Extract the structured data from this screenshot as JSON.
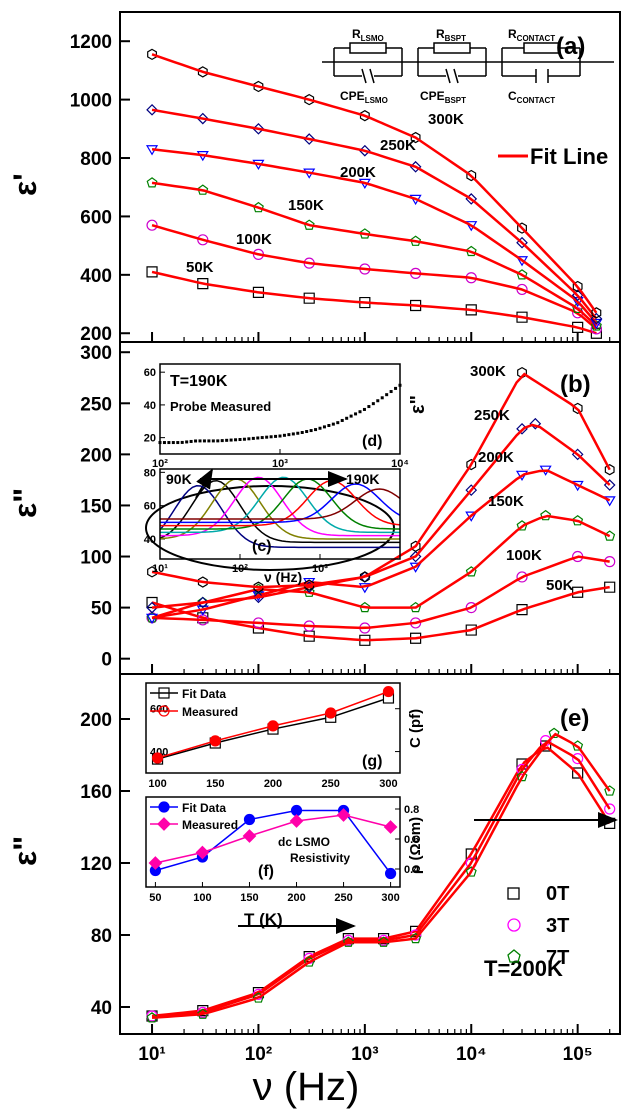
{
  "chart_data": [
    {
      "panel": "a",
      "type": "scatter",
      "title": "",
      "xlabel": "ν (Hz)",
      "ylabel": "ε'",
      "xscale": "log",
      "xlim": [
        5,
        250000
      ],
      "ylim": [
        170,
        1300
      ],
      "yticks": [
        200,
        400,
        600,
        800,
        1000,
        1200
      ],
      "panel_label": "(a)",
      "fit_legend": "Fit Line",
      "circuit": {
        "r1": "R",
        "r1_sub": "LSMO",
        "r2": "R",
        "r2_sub": "BSPT",
        "r3": "R",
        "r3_sub": "CONTACT",
        "c1": "CPE",
        "c1_sub": "LSMO",
        "c2": "CPE",
        "c2_sub": "BSPT",
        "c3": "C",
        "c3_sub": "CONTACT"
      },
      "series": [
        {
          "name": "50K",
          "marker": "square",
          "color": "#000000",
          "x": [
            10,
            30,
            100,
            300,
            1000,
            3000,
            10000,
            30000,
            100000,
            150000
          ],
          "y": [
            410,
            370,
            340,
            320,
            305,
            295,
            280,
            255,
            220,
            200
          ]
        },
        {
          "name": "100K",
          "marker": "circle",
          "color": "#cc00cc",
          "x": [
            10,
            30,
            100,
            300,
            1000,
            3000,
            10000,
            30000,
            100000,
            150000
          ],
          "y": [
            570,
            520,
            470,
            440,
            420,
            405,
            390,
            350,
            270,
            215
          ]
        },
        {
          "name": "150K",
          "marker": "pentagon",
          "color": "#008000",
          "x": [
            10,
            30,
            100,
            300,
            1000,
            3000,
            10000,
            30000,
            100000,
            150000
          ],
          "y": [
            715,
            690,
            630,
            570,
            540,
            515,
            480,
            400,
            285,
            225
          ]
        },
        {
          "name": "200K",
          "marker": "triangle-down",
          "color": "#0000ff",
          "x": [
            10,
            30,
            100,
            300,
            1000,
            3000,
            10000,
            30000,
            100000,
            150000
          ],
          "y": [
            830,
            810,
            780,
            750,
            715,
            660,
            570,
            450,
            310,
            235
          ]
        },
        {
          "name": "250K",
          "marker": "diamond",
          "color": "#000080",
          "x": [
            10,
            30,
            100,
            300,
            1000,
            3000,
            10000,
            30000,
            100000,
            150000
          ],
          "y": [
            965,
            935,
            900,
            865,
            825,
            770,
            660,
            510,
            330,
            250
          ]
        },
        {
          "name": "300K",
          "marker": "hexagon",
          "color": "#000000",
          "x": [
            10,
            30,
            100,
            300,
            1000,
            3000,
            10000,
            30000,
            100000,
            150000
          ],
          "y": [
            1155,
            1095,
            1045,
            1000,
            945,
            870,
            740,
            560,
            360,
            270
          ]
        }
      ]
    },
    {
      "panel": "b",
      "type": "scatter",
      "title": "",
      "xlabel": "ν (Hz)",
      "ylabel": "ε\"",
      "xscale": "log",
      "xlim": [
        5,
        250000
      ],
      "ylim": [
        -15,
        310
      ],
      "yticks": [
        0,
        50,
        100,
        150,
        200,
        250,
        300
      ],
      "panel_label": "(b)",
      "side_label": "ε\"",
      "series": [
        {
          "name": "50K",
          "marker": "square",
          "color": "#000000",
          "x": [
            10,
            30,
            100,
            300,
            1000,
            3000,
            10000,
            30000,
            100000,
            200000
          ],
          "y": [
            55,
            40,
            30,
            22,
            18,
            20,
            28,
            48,
            65,
            70
          ]
        },
        {
          "name": "100K",
          "marker": "circle",
          "color": "#cc00cc",
          "x": [
            10,
            30,
            100,
            300,
            1000,
            3000,
            10000,
            30000,
            100000,
            200000
          ],
          "y": [
            40,
            38,
            35,
            32,
            30,
            35,
            50,
            80,
            100,
            95
          ]
        },
        {
          "name": "150K",
          "marker": "pentagon",
          "color": "#008000",
          "x": [
            10,
            30,
            100,
            300,
            1000,
            3000,
            10000,
            30000,
            50000,
            100000,
            200000
          ],
          "y": [
            40,
            55,
            68,
            65,
            50,
            50,
            85,
            130,
            140,
            135,
            120
          ]
        },
        {
          "name": "200K",
          "marker": "triangle-down",
          "color": "#0000ff",
          "x": [
            10,
            30,
            100,
            300,
            1000,
            3000,
            10000,
            30000,
            50000,
            100000,
            200000
          ],
          "y": [
            40,
            48,
            62,
            75,
            70,
            90,
            140,
            180,
            185,
            170,
            155
          ]
        },
        {
          "name": "250K",
          "marker": "diamond",
          "color": "#000080",
          "x": [
            10,
            30,
            100,
            300,
            1000,
            3000,
            10000,
            30000,
            40000,
            100000,
            200000
          ],
          "y": [
            50,
            55,
            60,
            70,
            80,
            100,
            165,
            225,
            230,
            200,
            170
          ]
        },
        {
          "name": "300K",
          "marker": "hexagon",
          "color": "#000000",
          "x": [
            10,
            30,
            100,
            300,
            1000,
            3000,
            10000,
            30000,
            100000,
            200000
          ],
          "y": [
            85,
            75,
            70,
            72,
            80,
            110,
            190,
            280,
            245,
            185
          ]
        }
      ],
      "labels": [
        "300K",
        "250K",
        "200K",
        "150K",
        "100K",
        "50K"
      ]
    },
    {
      "panel": "d",
      "type": "scatter",
      "title": "T=190K",
      "subtitle": "Probe Measured",
      "panel_label": "(d)",
      "xscale": "log",
      "xlim": [
        100,
        10000
      ],
      "ylim": [
        10,
        65
      ],
      "yticks": [
        20,
        40,
        60
      ],
      "x_ticklabels": [
        "10²",
        "10³",
        "10⁴"
      ],
      "series": [
        {
          "name": "",
          "x": [
            100,
            150,
            200,
            300,
            500,
            700,
            1000,
            1500,
            2000,
            3000,
            5000,
            7000,
            10000
          ],
          "y": [
            17,
            17,
            18,
            18,
            19,
            20,
            21,
            23,
            25,
            29,
            37,
            44,
            52
          ]
        }
      ]
    },
    {
      "panel": "c",
      "type": "line",
      "panel_label": "(c)",
      "xlabel": "ν (Hz)",
      "xscale": "log",
      "xlim": [
        10,
        10000
      ],
      "ylim": [
        28,
        82
      ],
      "yticks": [
        40,
        60,
        80
      ],
      "x_ticklabels": [
        "10¹",
        "10²",
        "10³"
      ],
      "arrow_start_label": "90K",
      "arrow_end_label": "190K",
      "series": [
        {
          "name": "",
          "color": "#000080",
          "peak_x": 30,
          "peak_y": 72,
          "base": 35
        },
        {
          "name": "",
          "color": "#000000",
          "peak_x": 50,
          "peak_y": 75,
          "base": 38
        },
        {
          "name": "",
          "color": "#808000",
          "peak_x": 90,
          "peak_y": 76,
          "base": 40
        },
        {
          "name": "",
          "color": "#ff00ff",
          "peak_x": 170,
          "peak_y": 77,
          "base": 42
        },
        {
          "name": "",
          "color": "#00aaaa",
          "peak_x": 350,
          "peak_y": 77,
          "base": 44
        },
        {
          "name": "",
          "color": "#008000",
          "peak_x": 700,
          "peak_y": 76,
          "base": 46
        },
        {
          "name": "",
          "color": "#ff0000",
          "peak_x": 1400,
          "peak_y": 75,
          "base": 48
        },
        {
          "name": "",
          "color": "#0000ff",
          "peak_x": 2800,
          "peak_y": 73,
          "base": 50
        },
        {
          "name": "",
          "color": "#800000",
          "peak_x": 5500,
          "peak_y": 70,
          "base": 52
        }
      ]
    },
    {
      "panel": "e",
      "type": "scatter",
      "title": "",
      "xlabel": "ν (Hz)",
      "ylabel": "ε\"",
      "xscale": "log",
      "xlim": [
        5,
        250000
      ],
      "ylim": [
        25,
        225
      ],
      "yticks": [
        40,
        80,
        120,
        160,
        200
      ],
      "x_ticklabels": [
        "10¹",
        "10²",
        "10³",
        "10⁴",
        "10⁵"
      ],
      "panel_label": "(e)",
      "temperature_label": "T=200K",
      "series": [
        {
          "name": "0T",
          "marker": "square",
          "color": "#000000",
          "x": [
            10,
            30,
            100,
            300,
            700,
            1500,
            3000,
            10000,
            30000,
            50000,
            100000,
            200000
          ],
          "y": [
            35,
            38,
            48,
            68,
            78,
            78,
            82,
            125,
            175,
            185,
            170,
            142
          ]
        },
        {
          "name": "3T",
          "marker": "circle",
          "color": "#ff00ff",
          "x": [
            10,
            30,
            100,
            300,
            700,
            1500,
            3000,
            10000,
            30000,
            50000,
            100000,
            200000
          ],
          "y": [
            35,
            37,
            47,
            67,
            77,
            77,
            80,
            120,
            172,
            188,
            178,
            150
          ]
        },
        {
          "name": "7T",
          "marker": "pentagon",
          "color": "#008000",
          "x": [
            10,
            30,
            100,
            300,
            700,
            1500,
            3000,
            10000,
            30000,
            60000,
            100000,
            200000
          ],
          "y": [
            34,
            36,
            45,
            65,
            76,
            76,
            78,
            115,
            168,
            192,
            185,
            160
          ]
        }
      ]
    },
    {
      "panel": "g",
      "type": "line",
      "panel_label": "(g)",
      "ylabel": "C (pf)",
      "xlim": [
        90,
        310
      ],
      "ylim": [
        300,
        720
      ],
      "yticks": [
        400,
        600
      ],
      "series": [
        {
          "name": "Fit Data",
          "marker": "half-square",
          "color": "#000000",
          "x": [
            100,
            150,
            200,
            250,
            300
          ],
          "y": [
            365,
            440,
            505,
            560,
            650
          ]
        },
        {
          "name": "Measured",
          "marker": "half-circle",
          "color": "#ff0000",
          "x": [
            100,
            150,
            200,
            250,
            300
          ],
          "y": [
            370,
            450,
            520,
            580,
            680
          ]
        }
      ]
    },
    {
      "panel": "f",
      "type": "line",
      "panel_label": "(f)",
      "xlabel": "T (K)",
      "ylabel": "ρ (Ωcm)",
      "annotation": "dc LSMO Resistivity",
      "xlim": [
        40,
        310
      ],
      "ylim": [
        0.28,
        0.88
      ],
      "yticks": [
        0.4,
        0.6,
        0.8
      ],
      "xticks": [
        50,
        100,
        150,
        200,
        250,
        300
      ],
      "series": [
        {
          "name": "Fit Data",
          "marker": "half-circle",
          "color": "#0000ff",
          "x": [
            50,
            100,
            150,
            200,
            250,
            300
          ],
          "y": [
            0.39,
            0.48,
            0.73,
            0.79,
            0.79,
            0.37
          ]
        },
        {
          "name": "Measured",
          "marker": "half-diamond",
          "color": "#ff00aa",
          "x": [
            50,
            100,
            150,
            200,
            250,
            300
          ],
          "y": [
            0.44,
            0.51,
            0.62,
            0.72,
            0.76,
            0.68
          ]
        }
      ]
    }
  ]
}
